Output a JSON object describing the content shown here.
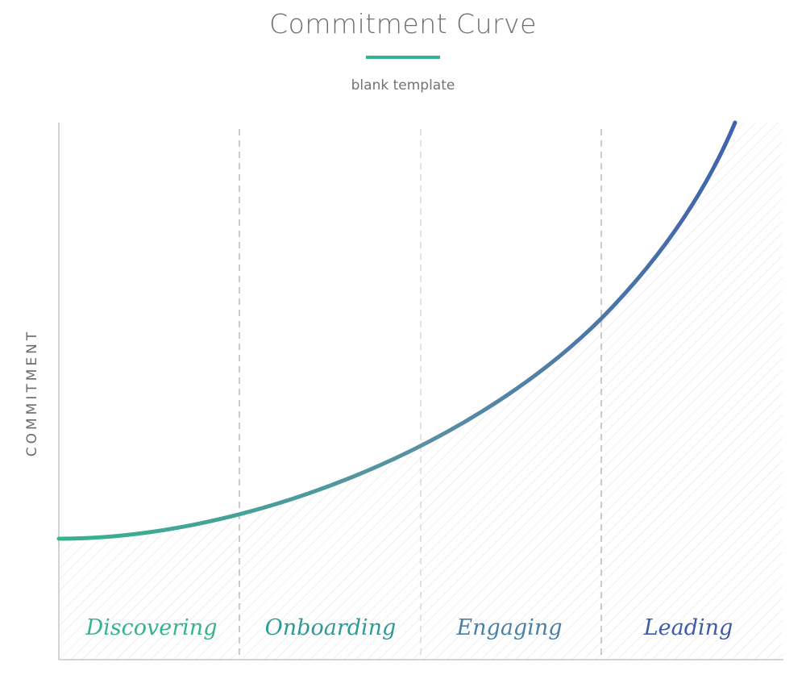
{
  "header": {
    "title": "Commitment Curve",
    "subtitle": "blank template"
  },
  "chart": {
    "ylabel": "COMMITMENT",
    "stages": [
      "Discovering",
      "Onboarding",
      "Engaging",
      "Leading"
    ],
    "colors": {
      "curve_start": "#35b28f",
      "curve_mid": "#5a8fa3",
      "curve_end": "#3f63ad",
      "accent_rule": "#35b28f",
      "stage_labels": [
        "#35b28f",
        "#2f9a95",
        "#4a7fa6",
        "#3f5aa6"
      ]
    }
  }
}
